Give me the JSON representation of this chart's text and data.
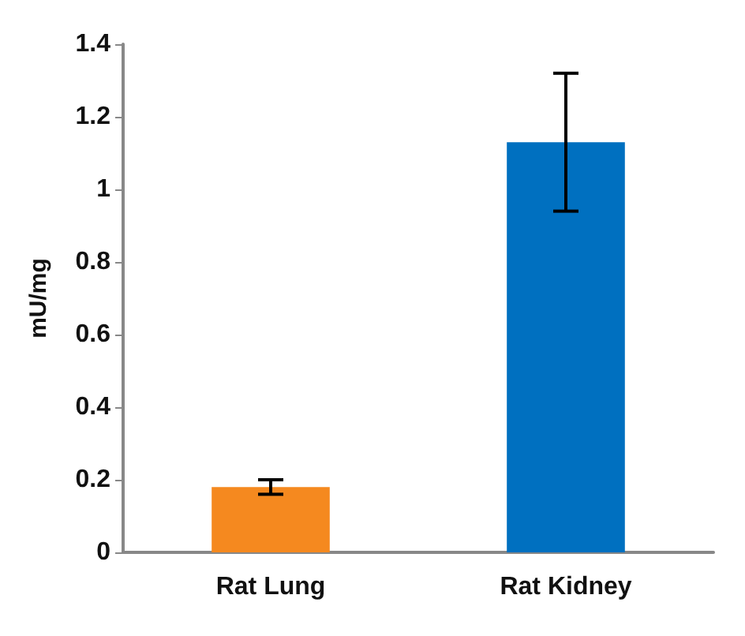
{
  "chart_data": {
    "type": "bar",
    "ylabel": "mU/mg",
    "categories": [
      "Rat Lung",
      "Rat Kidney"
    ],
    "values": [
      0.18,
      1.13
    ],
    "colors": [
      "#f5891f",
      "#0070c0"
    ],
    "errors": [
      0.02,
      0.19
    ],
    "ylim": [
      0,
      1.4
    ],
    "yticks": [
      0,
      0.2,
      0.4,
      0.6,
      0.8,
      1,
      1.2,
      1.4
    ],
    "grid": false
  }
}
